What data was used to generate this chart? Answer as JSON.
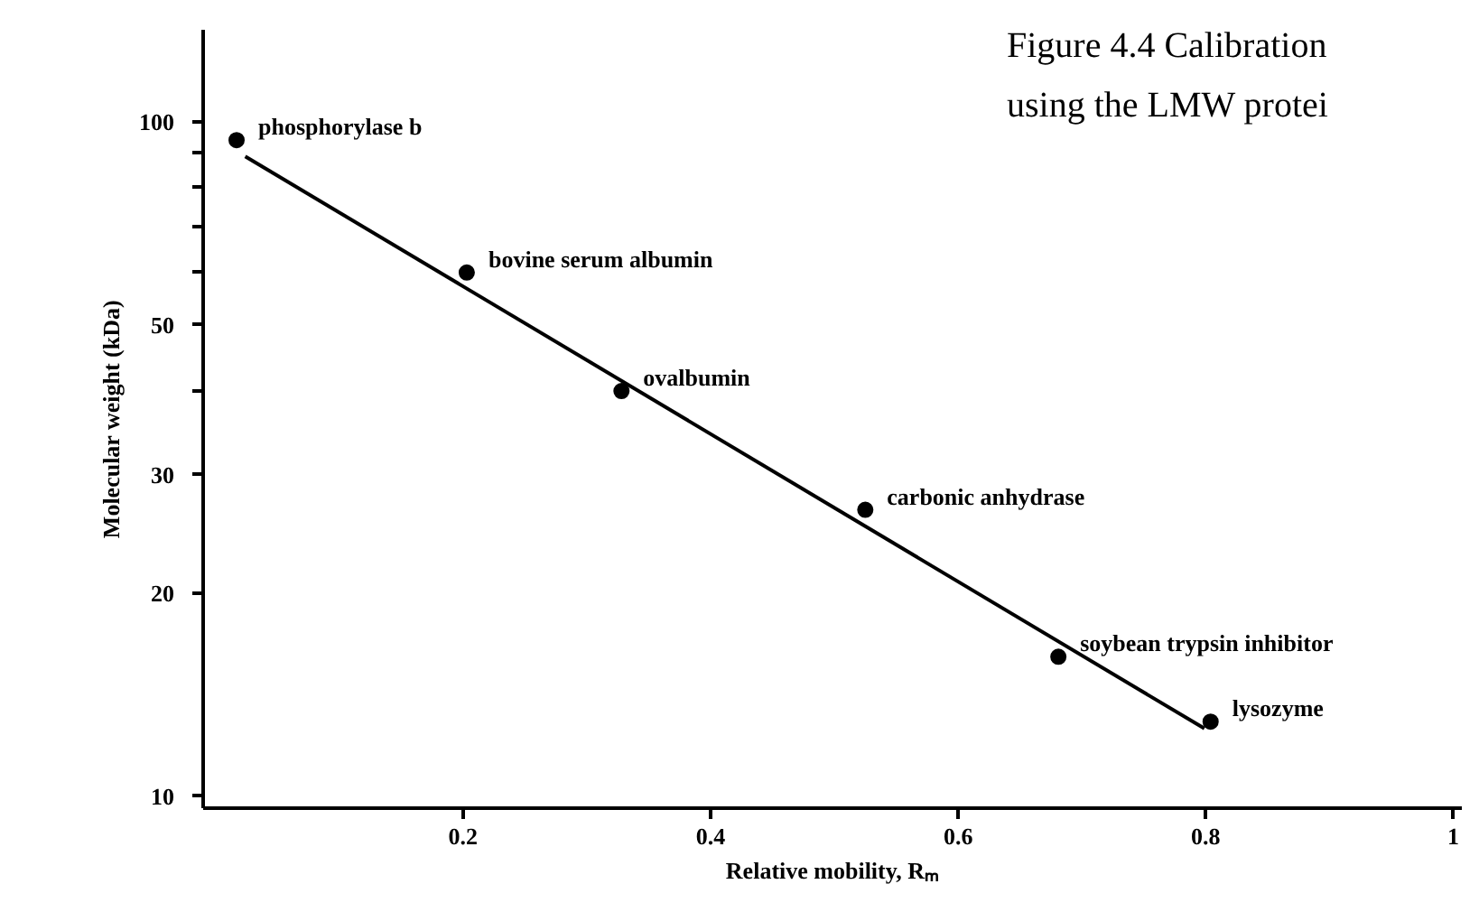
{
  "chart_data": {
    "type": "scatter",
    "title": "Figure 4.4 Calibration",
    "subtitle": "using the LMW protei",
    "xlabel": "Relative mobility, Rₘ",
    "ylabel": "Molecular weight (kDa)",
    "log": "y",
    "grid": false,
    "x": [
      0.017,
      0.203,
      0.328,
      0.525,
      0.681,
      0.804
    ],
    "series": [
      {
        "color": "#000000",
        "marker": "circle",
        "values": [
          94,
          59.8,
          39.9,
          26.6,
          16.1,
          12.9
        ]
      },
      {
        "type": "line",
        "color": "#000000",
        "x": [
          0.024,
          0.799
        ],
        "values": [
          88.9,
          12.6
        ],
        "line_style": "solid"
      }
    ],
    "xlim": [
      -0.01,
      1.007
    ],
    "ylim": [
      9.6,
      137
    ],
    "xticks": [
      0.2,
      0.4,
      0.6,
      0.8,
      1
    ],
    "yticks": [
      10,
      20,
      30,
      {
        "value": 40,
        "label": null
      },
      50,
      {
        "value": 60,
        "label": null
      },
      {
        "value": 70,
        "label": null
      },
      {
        "value": 80,
        "label": null
      },
      {
        "value": 90,
        "label": null
      },
      100
    ],
    "annotations": [
      {
        "text": "phosphorylase b",
        "x": 0.017,
        "y": 94
      },
      {
        "text": "bovine serum albumin",
        "x": 0.203,
        "y": 59.8
      },
      {
        "text": "ovalbumin",
        "x": 0.328,
        "y": 39.9
      },
      {
        "text": "carbonic anhydrase",
        "x": 0.525,
        "y": 26.6
      },
      {
        "text": "soybean trypsin inhibitor",
        "x": 0.681,
        "y": 16.1
      },
      {
        "text": "lysozyme",
        "x": 0.804,
        "y": 12.9
      }
    ]
  }
}
